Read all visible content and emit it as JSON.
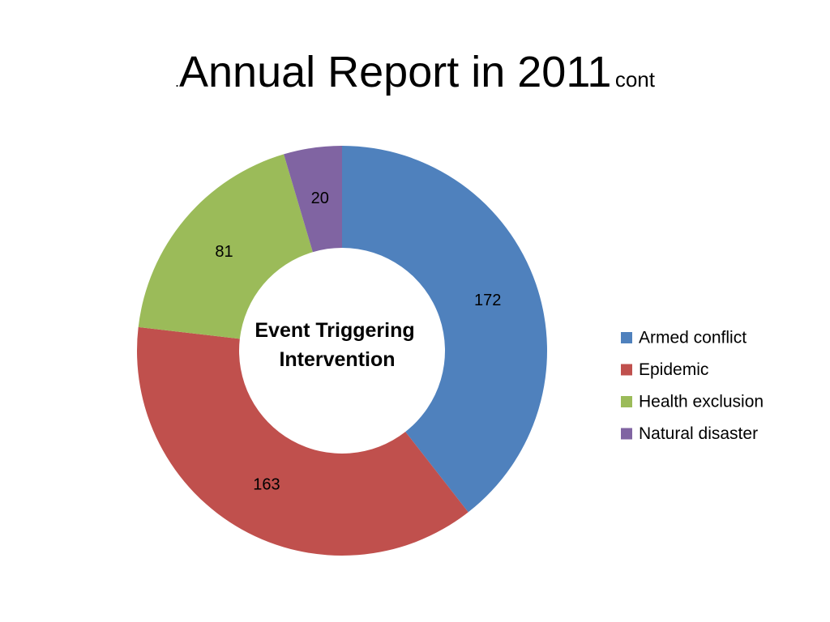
{
  "title": {
    "prefix": ".",
    "main": "Annual Report in 2011",
    "suffix": "cont"
  },
  "chart_data": {
    "type": "pie",
    "variant": "doughnut",
    "center_label": [
      "Event Triggering",
      "Intervention"
    ],
    "categories": [
      "Armed conflict",
      "Epidemic",
      "Health exclusion",
      "Natural disaster"
    ],
    "values": [
      172,
      163,
      81,
      20
    ],
    "colors": [
      "#4F81BD",
      "#C0504D",
      "#9BBB59",
      "#8064A2"
    ],
    "legend_position": "right"
  }
}
